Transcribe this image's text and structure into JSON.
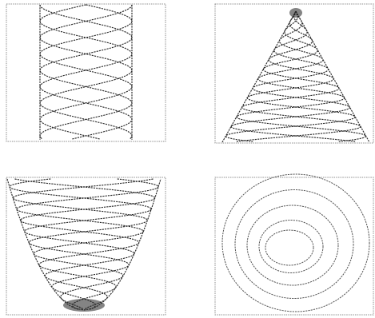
{
  "figure": {
    "panels": [
      {
        "id": "top-left",
        "pattern": "lattice-cylinder"
      },
      {
        "id": "top-right",
        "pattern": "lattice-cone"
      },
      {
        "id": "bottom-left",
        "pattern": "lattice-bowl"
      },
      {
        "id": "bottom-right",
        "pattern": "concentric-spiral"
      }
    ],
    "colors": {
      "background": "#ffffff",
      "ink": "#2b2b2b",
      "frame": "#8c8c8c"
    }
  }
}
